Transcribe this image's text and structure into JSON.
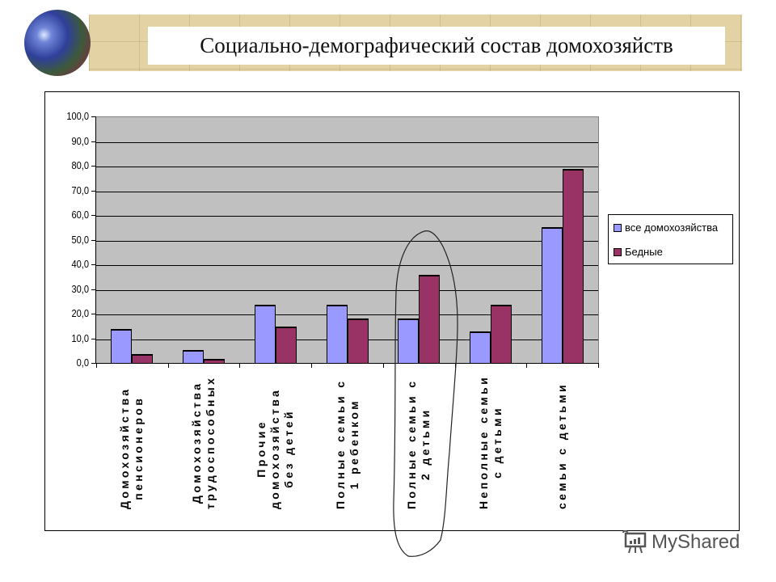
{
  "header": {
    "title": "Социально-демографический состав домохозяйств",
    "logo_icon": "globe-icon"
  },
  "legend": {
    "items": [
      {
        "label": "все домохозяйства",
        "color": "#9999ff"
      },
      {
        "label": "Бедные",
        "color": "#993366"
      }
    ]
  },
  "watermark": {
    "text": "MyShared",
    "icon": "presentation-board-icon"
  },
  "chart_data": {
    "type": "bar",
    "title": "Социально-демографический состав домохозяйств",
    "xlabel": "",
    "ylabel": "",
    "ylim": [
      0,
      100
    ],
    "yticks": [
      "0,0",
      "10,0",
      "20,0",
      "30,0",
      "40,0",
      "50,0",
      "60,0",
      "70,0",
      "80,0",
      "90,0",
      "100,0"
    ],
    "grid": true,
    "legend_position": "right",
    "categories": [
      "Домохозяйства\nпенсионеров",
      "Домохозяйства\nтрудоспособных",
      "Прочие\nдомохозяйства\nбез детей",
      "Полные семьи с\n1 ребенком",
      "Полные семьи с\n2 детьми",
      "Неполные семьи\nс детьми",
      "семьи с детьми"
    ],
    "series": [
      {
        "name": "все домохозяйства",
        "color": "#9999ff",
        "values": [
          14,
          5.5,
          24,
          24,
          18.5,
          13,
          55.5
        ]
      },
      {
        "name": "Бедные",
        "color": "#993366",
        "values": [
          4,
          2,
          15,
          18.5,
          36,
          24,
          79
        ]
      }
    ],
    "annotations": [
      "hand-drawn oval around 'Полные семьи с 2 детьми'"
    ]
  }
}
